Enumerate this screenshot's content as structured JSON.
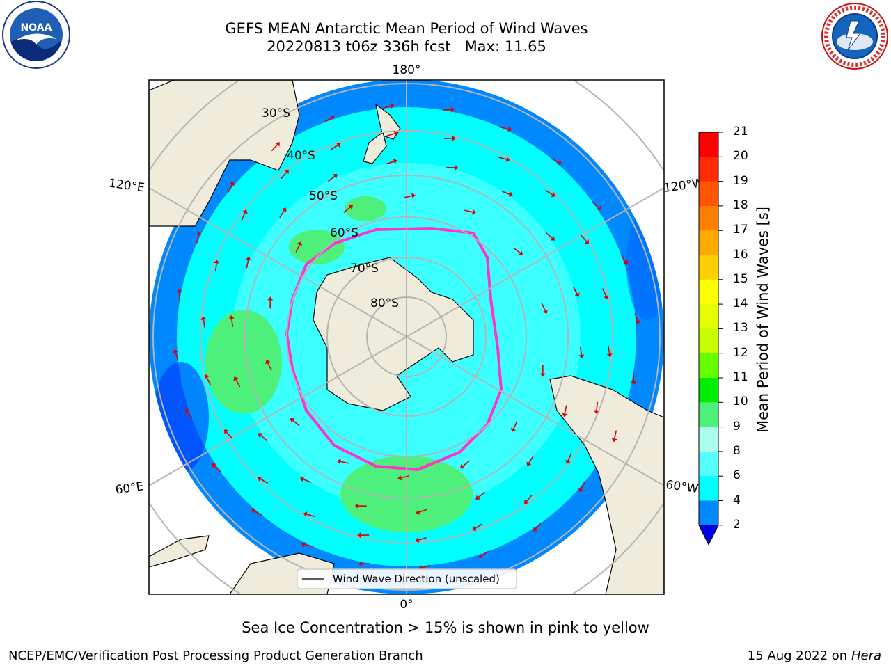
{
  "header": {
    "title_line1": "GEFS MEAN Antarctic Mean Period of Wind Waves",
    "title_line2": "20220813 t06z 336h fcst   Max: 11.65"
  },
  "logos": {
    "left": {
      "icon": "noaa-logo-icon",
      "text": "NOAA"
    },
    "right": {
      "icon": "nws-logo-icon",
      "text": "NATIONAL WEATHER SERVICE"
    }
  },
  "map": {
    "projection": "south-polar-stereographic",
    "longitude_labels": {
      "top": "180°",
      "bottom": "0°",
      "upper_left": "120°E",
      "upper_right": "120°W",
      "lower_left": "60°E",
      "lower_right": "60°W"
    },
    "latitude_labels": [
      "30°S",
      "40°S",
      "50°S",
      "60°S",
      "70°S",
      "80°S"
    ],
    "legend_text": "Wind Wave Direction (unscaled)",
    "arrow_color": "#e00000",
    "ice_edge_color": "#ff33cc",
    "land_color": "#efecdc",
    "ice_color": "#ffffff"
  },
  "colorbar": {
    "title": "Mean Period of Wind Waves [s]",
    "ticks": [
      "21",
      "20",
      "19",
      "18",
      "17",
      "16",
      "15",
      "14",
      "13",
      "12",
      "11",
      "10",
      "9",
      "8",
      "6",
      "4",
      "2"
    ],
    "colors": [
      "#ff0000",
      "#ff2a00",
      "#ff5500",
      "#ff7f00",
      "#ffaa00",
      "#ffd000",
      "#ffff00",
      "#e6ff00",
      "#c8ff00",
      "#66ff00",
      "#00ee00",
      "#4cf07a",
      "#aaffee",
      "#55ffff",
      "#00ffff",
      "#0088ff",
      "#0000ee"
    ]
  },
  "caption": "Sea Ice Concentration > 15% is shown in pink to yellow",
  "footer": {
    "left": "NCEP/EMC/Verification Post Processing Product Generation Branch",
    "right_date": "15 Aug 2022 on",
    "right_host": "Hera"
  }
}
